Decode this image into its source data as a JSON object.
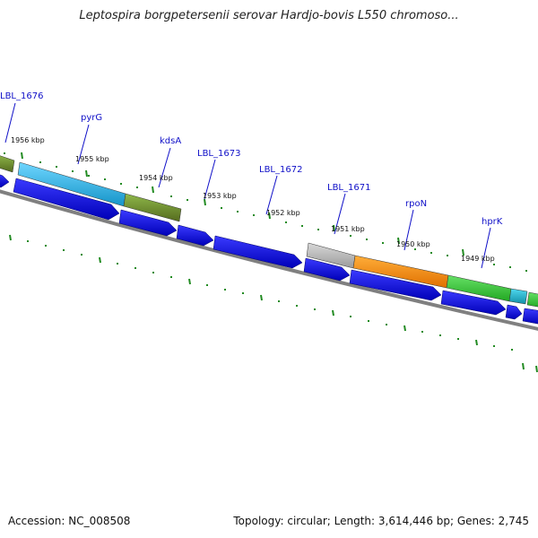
{
  "header": {
    "title": "Leptospira borgpetersenii serovar Hardjo-bovis L550 chromoso..."
  },
  "footer": {
    "accession": "Accession: NC_008508",
    "summary": "Topology: circular; Length: 3,614,446 bp; Genes: 2,745"
  },
  "scale_labels": [
    "1956 kbp",
    "1955 kbp",
    "1954 kbp",
    "1953 kbp",
    "1952 kbp",
    "1951 kbp",
    "1950 kbp",
    "1949 kbp"
  ],
  "gene_labels": [
    "LBL_1676",
    "pyrG",
    "kdsA",
    "LBL_1673",
    "LBL_1672",
    "LBL_1671",
    "rpoN",
    "hprK"
  ],
  "colors": {
    "forward_olive": "#6b8e23",
    "forward_cyan": "#29b6e8",
    "forward_gray": "#bdbdbd",
    "forward_orange": "#ff8c00",
    "forward_green": "#33cc33",
    "forward_teal": "#1ab0c8",
    "reverse_blue": "#0000ee",
    "backbone": "#808080",
    "ticks": "#228b22",
    "label_blue": "#1010c8"
  }
}
